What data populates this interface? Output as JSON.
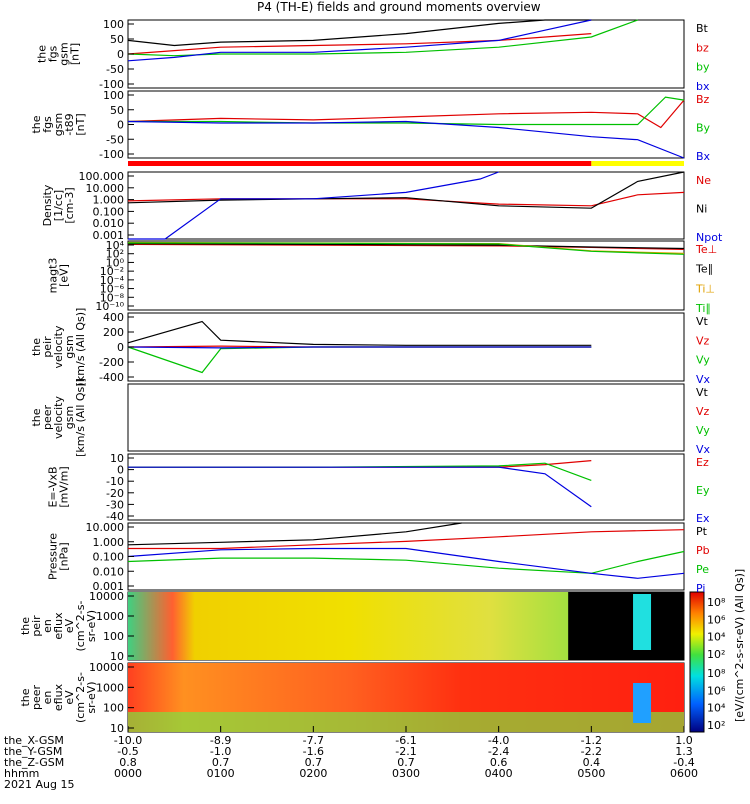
{
  "title": "P4 (TH-E) fields and ground moments overview",
  "panels": [
    {
      "id": "fgs_gsm",
      "ylabel": [
        "the",
        "fgs",
        "gsm",
        "[nT]"
      ],
      "ticks": [
        "100",
        "50",
        "0",
        "-50",
        "-100"
      ],
      "legend": [
        {
          "text": "Bt",
          "color": "#000000"
        },
        {
          "text": "bz",
          "color": "#e00000"
        },
        {
          "text": "by",
          "color": "#00c000"
        },
        {
          "text": "bx",
          "color": "#0000e0"
        }
      ]
    },
    {
      "id": "fgs_gsm_t89",
      "ylabel": [
        "the",
        "fgs",
        "gsm",
        "-t89",
        "[nT]"
      ],
      "ticks": [
        "100",
        "50",
        "0",
        "-50",
        "-100"
      ],
      "legend": [
        {
          "text": "Bz",
          "color": "#e00000"
        },
        {
          "text": "By",
          "color": "#00c000"
        },
        {
          "text": "Bx",
          "color": "#0000e0"
        }
      ]
    },
    {
      "id": "density",
      "ylabel": [
        "Density",
        "[1/cc]",
        "[cm-3]"
      ],
      "ticks": [
        "100.000",
        "10.000",
        "1.000",
        "0.100",
        "0.010",
        "0.001"
      ],
      "legend": [
        {
          "text": "Ne",
          "color": "#e00000"
        },
        {
          "text": "Ni",
          "color": "#000000"
        },
        {
          "text": "Npot",
          "color": "#0000e0"
        }
      ]
    },
    {
      "id": "temperature",
      "ylabel": [
        "magt3",
        "[eV]"
      ],
      "ticks": [
        "10⁴",
        "10²",
        "10⁰",
        "10⁻²",
        "10⁻⁴",
        "10⁻⁶",
        "10⁻⁸",
        "10⁻¹⁰"
      ],
      "legend": [
        {
          "text": "Te⊥",
          "color": "#e00000"
        },
        {
          "text": "Te∥",
          "color": "#000000"
        },
        {
          "text": "Ti⊥",
          "color": "#e0a000"
        },
        {
          "text": "Ti∥",
          "color": "#00c000"
        }
      ]
    },
    {
      "id": "peir_velocity",
      "ylabel": [
        "the",
        "peir",
        "velocity",
        "gsm",
        "[km/s (All Qs)]"
      ],
      "ticks": [
        "400",
        "200",
        "0",
        "-200",
        "-400"
      ],
      "legend": [
        {
          "text": "Vt",
          "color": "#000000"
        },
        {
          "text": "Vz",
          "color": "#e00000"
        },
        {
          "text": "Vy",
          "color": "#00c000"
        },
        {
          "text": "Vx",
          "color": "#0000e0"
        }
      ]
    },
    {
      "id": "peer_velocity",
      "ylabel": [
        "the",
        "peer",
        "velocity",
        "gsm",
        "[km/s (All Qs)]"
      ],
      "ticks": [],
      "legend": [
        {
          "text": "Vt",
          "color": "#000000"
        },
        {
          "text": "Vz",
          "color": "#e00000"
        },
        {
          "text": "Vy",
          "color": "#00c000"
        },
        {
          "text": "Vx",
          "color": "#0000e0"
        }
      ]
    },
    {
      "id": "efield",
      "ylabel": [
        "E=-VxB",
        "[mV/m]"
      ],
      "ticks": [
        "10",
        "0",
        "-10",
        "-20",
        "-30",
        "-40"
      ],
      "legend": [
        {
          "text": "Ez",
          "color": "#e00000"
        },
        {
          "text": "Ey",
          "color": "#00c000"
        },
        {
          "text": "Ex",
          "color": "#0000e0"
        }
      ]
    },
    {
      "id": "pressure",
      "ylabel": [
        "Pressure",
        "[nPa]"
      ],
      "ticks": [
        "10.000",
        "1.000",
        "0.100",
        "0.010",
        "0.001"
      ],
      "legend": [
        {
          "text": "Pt",
          "color": "#000000"
        },
        {
          "text": "Pb",
          "color": "#e00000"
        },
        {
          "text": "Pe",
          "color": "#00c000"
        },
        {
          "text": "Pi",
          "color": "#0000e0"
        }
      ]
    },
    {
      "id": "peir_spec",
      "ylabel": [
        "the",
        "peir",
        "en",
        "eflux",
        "eV",
        "(cm^2-s-",
        "sr-eV)"
      ],
      "ticks": [
        "10000",
        "1000",
        "100",
        "10"
      ],
      "legend": []
    },
    {
      "id": "peer_spec",
      "ylabel": [
        "the",
        "peer",
        "en",
        "eflux",
        "eV",
        "(cm^2-s-",
        "sr-eV)"
      ],
      "ticks": [
        "10000",
        "1000",
        "100",
        "10"
      ],
      "legend": []
    }
  ],
  "colorbar": {
    "ticks": [
      "10⁸",
      "10⁶",
      "10⁴",
      "10²"
    ],
    "label": "[eV/(cm^2-s-sr-eV) (All Qs)]"
  },
  "xaxis": {
    "row_labels": [
      "the_X-GSM",
      "the_Y-GSM",
      "the_Z-GSM",
      "hhmm",
      "2021 Aug 15"
    ],
    "columns": [
      [
        "-10.0",
        "-0.5",
        "0.8",
        "0000"
      ],
      [
        "-8.9",
        "-1.0",
        "0.7",
        "0100"
      ],
      [
        "-7.7",
        "-1.6",
        "0.7",
        "0200"
      ],
      [
        "-6.1",
        "-2.1",
        "0.7",
        "0300"
      ],
      [
        "-4.0",
        "-2.4",
        "0.6",
        "0400"
      ],
      [
        "-1.2",
        "-2.2",
        "0.4",
        "0500"
      ],
      [
        "1.0",
        "1.3",
        "-0.4",
        "0600"
      ]
    ]
  },
  "chart_data": {
    "type": "line",
    "title": "P4 (TH-E) fields and ground moments overview",
    "x_unit": "hhmm",
    "x": [
      "0000",
      "0100",
      "0200",
      "0300",
      "0400",
      "0500",
      "0600"
    ],
    "xlim": [
      "0000",
      "0600"
    ],
    "grid": false,
    "legend_placement": "right",
    "panels": [
      {
        "name": "the fgs gsm [nT]",
        "ylim": [
          -100,
          100
        ],
        "scale": "linear",
        "series": [
          {
            "name": "Bt",
            "color": "#000000",
            "x": [
              0.0,
              0.5,
              1.0,
              2.0,
              3.0,
              4.0,
              4.5,
              5.0
            ],
            "y": [
              40,
              25,
              35,
              40,
              60,
              90,
              100,
              100
            ]
          },
          {
            "name": "bz",
            "color": "#e00000",
            "x": [
              0.0,
              0.5,
              1.0,
              2.0,
              3.0,
              4.0,
              5.0
            ],
            "y": [
              0,
              10,
              20,
              25,
              30,
              40,
              60
            ]
          },
          {
            "name": "by",
            "color": "#00c000",
            "x": [
              0.0,
              0.5,
              1.0,
              2.0,
              3.0,
              4.0,
              5.0,
              5.5
            ],
            "y": [
              0,
              -5,
              0,
              0,
              5,
              20,
              50,
              100
            ]
          },
          {
            "name": "bx",
            "color": "#0000e0",
            "x": [
              0.0,
              0.5,
              1.0,
              2.0,
              3.0,
              4.0,
              4.5,
              5.0
            ],
            "y": [
              -20,
              -10,
              5,
              5,
              20,
              40,
              70,
              100
            ]
          }
        ]
      },
      {
        "name": "the fgs gsm -t89 [nT]",
        "ylim": [
          -120,
          100
        ],
        "scale": "linear",
        "series": [
          {
            "name": "Bz",
            "color": "#e00000",
            "x": [
              0.0,
              1.0,
              2.0,
              3.0,
              4.0,
              5.0,
              5.5,
              5.75,
              6.0
            ],
            "y": [
              0,
              10,
              5,
              15,
              25,
              30,
              25,
              -20,
              70
            ]
          },
          {
            "name": "By",
            "color": "#00c000",
            "x": [
              0.0,
              1.0,
              2.0,
              3.0,
              4.0,
              5.0,
              5.5,
              5.8,
              6.0
            ],
            "y": [
              0,
              0,
              -5,
              -5,
              -10,
              -10,
              -10,
              80,
              70
            ]
          },
          {
            "name": "Bx",
            "color": "#0000e0",
            "x": [
              0.0,
              1.0,
              2.0,
              3.0,
              4.0,
              5.0,
              5.5,
              6.0
            ],
            "y": [
              0,
              -5,
              -5,
              0,
              -20,
              -50,
              -60,
              -120
            ]
          }
        ]
      },
      {
        "name": "Density [1/cc] [cm-3]",
        "ylim": [
          0.001,
          100
        ],
        "scale": "log",
        "series": [
          {
            "name": "Ne",
            "color": "#e00000",
            "x": [
              0.0,
              1.0,
              2.0,
              3.0,
              4.0,
              5.0,
              5.5,
              6.0
            ],
            "y": [
              0.7,
              1.0,
              1.0,
              1.0,
              0.4,
              0.3,
              2.0,
              3.0
            ]
          },
          {
            "name": "Ni",
            "color": "#000000",
            "x": [
              0.0,
              1.0,
              2.0,
              3.0,
              4.0,
              5.0,
              5.5,
              6.0
            ],
            "y": [
              0.5,
              0.8,
              1.0,
              1.2,
              0.3,
              0.2,
              20,
              100
            ]
          },
          {
            "name": "Npot",
            "color": "#0000e0",
            "x": [
              0.0,
              0.4,
              1.0,
              2.0,
              3.0,
              3.8,
              4.0
            ],
            "y": [
              0.001,
              0.001,
              1.0,
              1.0,
              3.0,
              30,
              100
            ]
          }
        ]
      },
      {
        "name": "magt3 [eV]",
        "ylim": [
          1e-10,
          10000
        ],
        "scale": "log",
        "series": [
          {
            "name": "Te⊥",
            "color": "#e00000",
            "x": [
              0.0,
              2.0,
              4.0,
              5.0,
              6.0
            ],
            "y": [
              2000,
              1500,
              1000,
              500,
              200
            ]
          },
          {
            "name": "Te∥",
            "color": "#000000",
            "x": [
              0.0,
              2.0,
              4.0,
              5.0,
              6.0
            ],
            "y": [
              3000,
              2000,
              1500,
              600,
              300
            ]
          },
          {
            "name": "Ti⊥",
            "color": "#e0a000",
            "x": [
              0.0,
              2.0,
              4.0,
              5.0,
              6.0
            ],
            "y": [
              5000,
              4000,
              3000,
              100,
              30
            ]
          },
          {
            "name": "Ti∥",
            "color": "#00c000",
            "x": [
              0.0,
              2.0,
              4.0,
              5.0,
              6.0
            ],
            "y": [
              4000,
              3500,
              2500,
              80,
              20
            ]
          }
        ]
      },
      {
        "name": "the peir velocity gsm [km/s (All Qs)]",
        "ylim": [
          -400,
          400
        ],
        "scale": "linear",
        "series": [
          {
            "name": "Vt",
            "color": "#000000",
            "x": [
              0.0,
              0.8,
              1.0,
              2.0,
              3.0,
              4.0,
              5.0
            ],
            "y": [
              50,
              300,
              80,
              30,
              20,
              20,
              20
            ]
          },
          {
            "name": "Vz",
            "color": "#e00000",
            "x": [
              0.0,
              1.0,
              2.0,
              3.0,
              4.0,
              5.0
            ],
            "y": [
              0,
              10,
              0,
              0,
              0,
              0
            ]
          },
          {
            "name": "Vy",
            "color": "#00c000",
            "x": [
              0.0,
              0.8,
              1.0,
              2.0,
              5.0
            ],
            "y": [
              0,
              -300,
              -20,
              0,
              0
            ]
          },
          {
            "name": "Vx",
            "color": "#0000e0",
            "x": [
              0.0,
              1.0,
              2.0,
              5.0
            ],
            "y": [
              0,
              -10,
              0,
              0
            ]
          }
        ]
      },
      {
        "name": "the peer velocity gsm [km/s (All Qs)]",
        "ylim": [],
        "scale": "linear",
        "series": []
      },
      {
        "name": "E=-VxB [mV/m]",
        "ylim": [
          -40,
          10
        ],
        "scale": "linear",
        "series": [
          {
            "name": "Ez",
            "color": "#e00000",
            "x": [
              0.0,
              2.0,
              4.0,
              4.5,
              5.0
            ],
            "y": [
              0,
              0,
              0,
              2,
              5
            ]
          },
          {
            "name": "Ey",
            "color": "#00c000",
            "x": [
              0.0,
              2.0,
              4.0,
              4.5,
              5.0
            ],
            "y": [
              0,
              0,
              1,
              3,
              -10
            ]
          },
          {
            "name": "Ex",
            "color": "#0000e0",
            "x": [
              0.0,
              2.0,
              4.0,
              4.5,
              5.0
            ],
            "y": [
              0,
              0,
              0,
              -5,
              -30
            ]
          }
        ]
      },
      {
        "name": "Pressure [nPa]",
        "ylim": [
          0.001,
          10
        ],
        "scale": "log",
        "series": [
          {
            "name": "Pt",
            "color": "#000000",
            "x": [
              0.0,
              1.0,
              2.0,
              3.0,
              3.6
            ],
            "y": [
              0.5,
              0.7,
              1.0,
              3.0,
              10
            ]
          },
          {
            "name": "Pb",
            "color": "#e00000",
            "x": [
              0.0,
              1.0,
              2.0,
              3.0,
              4.0,
              5.0,
              6.0
            ],
            "y": [
              0.3,
              0.3,
              0.5,
              0.8,
              1.5,
              3.0,
              4.0
            ]
          },
          {
            "name": "Pe",
            "color": "#00c000",
            "x": [
              0.0,
              1.0,
              2.0,
              3.0,
              4.0,
              5.0,
              5.5,
              6.0
            ],
            "y": [
              0.05,
              0.08,
              0.08,
              0.06,
              0.02,
              0.01,
              0.05,
              0.2
            ]
          },
          {
            "name": "Pi",
            "color": "#0000e0",
            "x": [
              0.0,
              1.0,
              2.0,
              3.0,
              4.0,
              5.0,
              5.5,
              6.0
            ],
            "y": [
              0.1,
              0.25,
              0.3,
              0.3,
              0.05,
              0.01,
              0.005,
              0.01
            ]
          }
        ]
      }
    ],
    "spectrograms": [
      {
        "name": "the peir en eflux",
        "ylim": [
          10,
          10000
        ],
        "scale": "log",
        "colorbar": [
          100,
          100000000
        ]
      },
      {
        "name": "the peer en eflux",
        "ylim": [
          10,
          10000
        ],
        "scale": "log",
        "colorbar": [
          100,
          100000000
        ]
      }
    ],
    "xaxis_rows": {
      "the_X-GSM": [
        "-10.0",
        "-8.9",
        "-7.7",
        "-6.1",
        "-4.0",
        "-1.2",
        "1.0"
      ],
      "the_Y-GSM": [
        "-0.5",
        "-1.0",
        "-1.6",
        "-2.1",
        "-2.4",
        "-2.2",
        "1.3"
      ],
      "the_Z-GSM": [
        "0.8",
        "0.7",
        "0.7",
        "0.7",
        "0.6",
        "0.4",
        "-0.4"
      ],
      "hhmm": [
        "0000",
        "0100",
        "0200",
        "0300",
        "0400",
        "0500",
        "0600"
      ]
    }
  }
}
